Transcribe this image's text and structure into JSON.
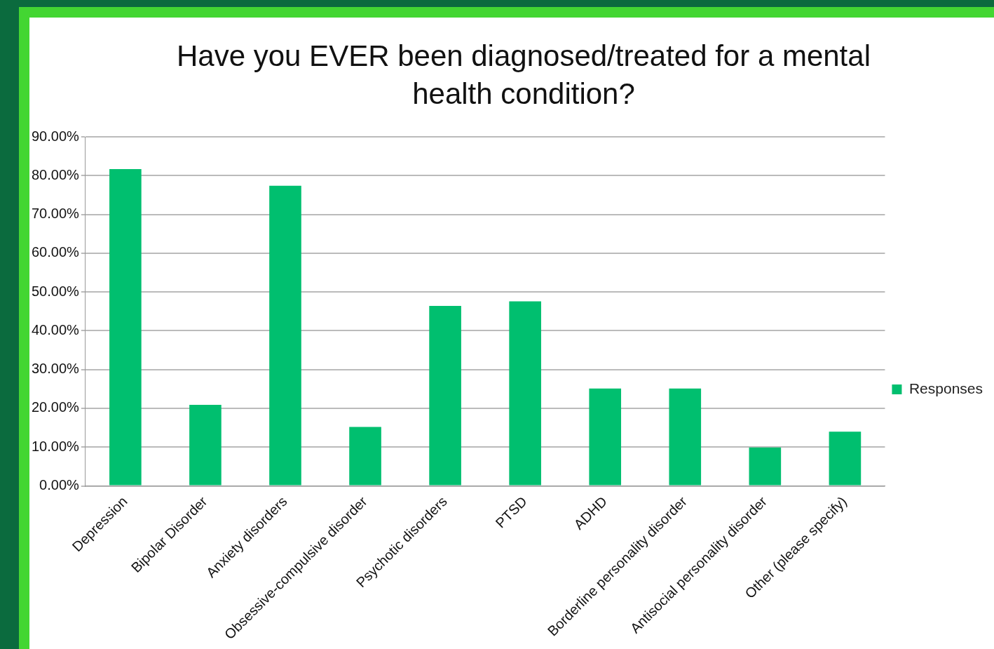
{
  "chart_data": {
    "type": "bar",
    "title": "Have you EVER been diagnosed/treated for a mental health condition?",
    "categories": [
      "Depression",
      "Bipolar Disorder",
      "Anxiety disorders",
      "Obsessive-compulsive disorder",
      "Psychotic disorders",
      "PTSD",
      "ADHD",
      "Borderline personality disorder",
      "Antisocial personality disorder",
      "Other (please specify)"
    ],
    "series": [
      {
        "name": "Responses",
        "color": "#00bf6f",
        "values": [
          81.7,
          20.9,
          77.4,
          15.2,
          46.4,
          47.6,
          25.1,
          25.1,
          9.9,
          14.0
        ]
      }
    ],
    "ylim": [
      0,
      90
    ],
    "yticks": [
      {
        "value": 0,
        "label": "0.00%"
      },
      {
        "value": 10,
        "label": "10.00%"
      },
      {
        "value": 20,
        "label": "20.00%"
      },
      {
        "value": 30,
        "label": "30.00%"
      },
      {
        "value": 40,
        "label": "40.00%"
      },
      {
        "value": 50,
        "label": "50.00%"
      },
      {
        "value": 60,
        "label": "60.00%"
      },
      {
        "value": 70,
        "label": "70.00%"
      },
      {
        "value": 80,
        "label": "80.00%"
      },
      {
        "value": 90,
        "label": "90.00%"
      }
    ],
    "grid": "y",
    "legend": "right"
  }
}
